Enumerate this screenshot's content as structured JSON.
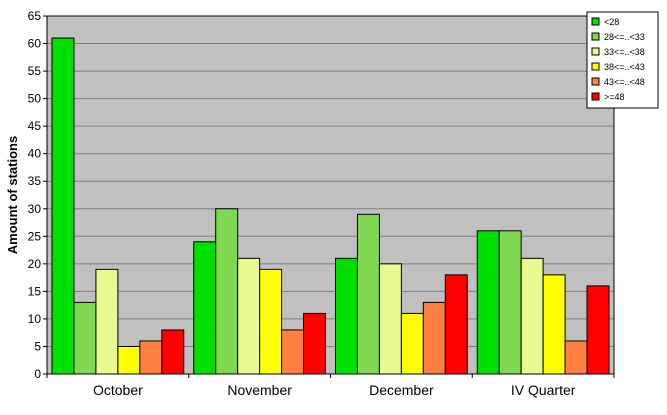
{
  "chart_data": {
    "type": "bar",
    "ylabel": "Amount of stations",
    "xlabel": "",
    "title": "",
    "ylim": [
      0,
      65
    ],
    "ytick_step": 5,
    "grid": true,
    "legend_position": "top-right",
    "categories": [
      "October",
      "November",
      "December",
      "IV Quarter"
    ],
    "series": [
      {
        "name": "<28",
        "color": "#00e000",
        "values": [
          61,
          24,
          21,
          26
        ]
      },
      {
        "name": "28<=..<33",
        "color": "#80d850",
        "values": [
          13,
          30,
          29,
          26
        ]
      },
      {
        "name": "33<=..<38",
        "color": "#e8fa90",
        "values": [
          19,
          21,
          20,
          21
        ]
      },
      {
        "name": "38<=..<43",
        "color": "#ffff00",
        "values": [
          5,
          19,
          11,
          18
        ]
      },
      {
        "name": "43<=..<48",
        "color": "#ff8040",
        "values": [
          6,
          8,
          13,
          6
        ]
      },
      {
        "name": ">=48",
        "color": "#ff0000",
        "values": [
          8,
          11,
          18,
          16
        ]
      }
    ],
    "plot_background": "#c0c0c0"
  }
}
